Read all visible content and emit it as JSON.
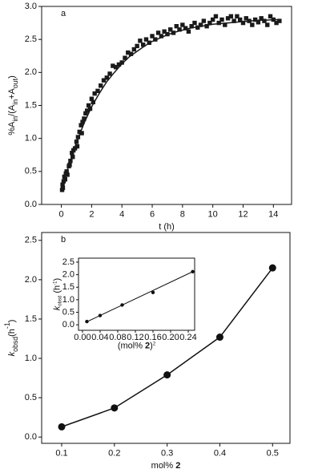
{
  "chart_data": [
    {
      "type": "scatter",
      "label": "a",
      "xlabel": [
        {
          "text": "t (h)"
        }
      ],
      "ylabel": [
        {
          "text": "%A"
        },
        {
          "text": "in",
          "sub": true
        },
        {
          "text": "/(A"
        },
        {
          "text": "in",
          "sub": true
        },
        {
          "text": "+A"
        },
        {
          "text": "out",
          "sub": true
        },
        {
          "text": ")"
        }
      ],
      "xlim": [
        -1.3,
        15.2
      ],
      "ylim": [
        0,
        3
      ],
      "xticks": [
        0,
        2,
        4,
        6,
        8,
        10,
        12,
        14
      ],
      "yticks": [
        {
          "value": 0,
          "label": "0.0"
        },
        0.5,
        {
          "value": 1,
          "label": "1.0"
        },
        1.5,
        {
          "value": 2,
          "label": "2.0"
        },
        2.5,
        {
          "value": 3,
          "label": "3.0"
        }
      ],
      "series": [
        {
          "marker": "square",
          "color": "#1a1a1a",
          "x": [
            0.05,
            0.08,
            0.1,
            0.15,
            0.2,
            0.25,
            0.3,
            0.35,
            0.4,
            0.5,
            0.55,
            0.6,
            0.7,
            0.75,
            0.8,
            0.9,
            1.0,
            1.05,
            1.1,
            1.2,
            1.3,
            1.35,
            1.4,
            1.5,
            1.6,
            1.7,
            1.8,
            1.9,
            2.0,
            2.1,
            2.2,
            2.4,
            2.6,
            2.8,
            3.0,
            3.2,
            3.4,
            3.6,
            3.8,
            4.0,
            4.2,
            4.4,
            4.6,
            4.8,
            5.0,
            5.2,
            5.4,
            5.6,
            5.8,
            6.0,
            6.2,
            6.4,
            6.6,
            6.8,
            7.0,
            7.2,
            7.4,
            7.6,
            7.8,
            8.0,
            8.2,
            8.4,
            8.6,
            8.8,
            9.0,
            9.2,
            9.4,
            9.6,
            9.8,
            10.0,
            10.2,
            10.4,
            10.6,
            10.8,
            11.0,
            11.2,
            11.4,
            11.6,
            11.8,
            12.0,
            12.2,
            12.4,
            12.6,
            12.8,
            13.0,
            13.2,
            13.4,
            13.6,
            13.8,
            14.0,
            14.2,
            14.4
          ],
          "values": [
            0.22,
            0.3,
            0.25,
            0.35,
            0.42,
            0.38,
            0.47,
            0.5,
            0.45,
            0.58,
            0.6,
            0.66,
            0.78,
            0.72,
            0.82,
            0.85,
            0.95,
            0.88,
            1.02,
            1.1,
            1.2,
            1.08,
            1.25,
            1.3,
            1.38,
            1.42,
            1.5,
            1.45,
            1.6,
            1.55,
            1.68,
            1.72,
            1.8,
            1.88,
            1.92,
            1.98,
            2.1,
            2.08,
            2.12,
            2.15,
            2.22,
            2.3,
            2.28,
            2.35,
            2.4,
            2.48,
            2.42,
            2.5,
            2.45,
            2.55,
            2.5,
            2.6,
            2.55,
            2.62,
            2.58,
            2.65,
            2.6,
            2.7,
            2.65,
            2.72,
            2.67,
            2.62,
            2.7,
            2.75,
            2.68,
            2.72,
            2.78,
            2.7,
            2.75,
            2.8,
            2.85,
            2.75,
            2.8,
            2.72,
            2.82,
            2.85,
            2.78,
            2.85,
            2.8,
            2.75,
            2.82,
            2.78,
            2.72,
            2.8,
            2.76,
            2.82,
            2.78,
            2.72,
            2.85,
            2.8,
            2.75,
            2.78
          ]
        },
        {
          "line": true,
          "color": "#1a1a1a",
          "x": [
            0,
            0.5,
            1,
            1.5,
            2,
            2.5,
            3,
            3.5,
            4,
            4.5,
            5,
            5.5,
            6,
            6.5,
            7,
            7.5,
            8,
            8.5,
            9,
            9.5,
            10,
            10.5,
            11,
            11.5,
            12,
            12.5,
            13,
            13.5,
            14,
            14.5
          ],
          "values": [
            0.2,
            0.6,
            0.94,
            1.23,
            1.48,
            1.68,
            1.86,
            2.0,
            2.13,
            2.24,
            2.32,
            2.4,
            2.47,
            2.52,
            2.57,
            2.61,
            2.64,
            2.67,
            2.69,
            2.71,
            2.73,
            2.74,
            2.75,
            2.76,
            2.77,
            2.78,
            2.79,
            2.79,
            2.8,
            2.8
          ]
        }
      ]
    },
    {
      "type": "scatter",
      "label": "b",
      "xlabel": [
        {
          "text": "mol% "
        },
        {
          "text": "2",
          "bold": true
        }
      ],
      "ylabel": [
        {
          "text": "k",
          "italic": true
        },
        {
          "text": "obsd",
          "sub": true
        },
        {
          "text": "(h"
        },
        {
          "text": "-1",
          "sup": true
        },
        {
          "text": ")"
        }
      ],
      "xlim": [
        0.062,
        0.533
      ],
      "ylim": [
        -0.08,
        2.6
      ],
      "xticks": [
        0.1,
        0.2,
        0.3,
        0.4,
        0.5
      ],
      "yticks": [
        {
          "value": 0,
          "label": "0.0"
        },
        0.5,
        {
          "value": 1,
          "label": "1.0"
        },
        1.5,
        {
          "value": 2,
          "label": "2.0"
        },
        2.5
      ],
      "series": [
        {
          "marker": "circle",
          "line": true,
          "color": "#111111",
          "x": [
            0.1,
            0.2,
            0.3,
            0.4,
            0.5
          ],
          "values": [
            0.13,
            0.37,
            0.79,
            1.27,
            2.15
          ]
        }
      ]
    },
    {
      "type": "scatter",
      "inset": true,
      "xlabel": [
        {
          "text": "(mol% "
        },
        {
          "text": "2",
          "bold": true
        },
        {
          "text": ")"
        },
        {
          "text": "2",
          "sup": true
        }
      ],
      "ylabel": [
        {
          "text": "k",
          "italic": true
        },
        {
          "text": "obsd",
          "sub": true
        },
        {
          "text": " (h"
        },
        {
          "text": "-1",
          "sup": true
        },
        {
          "text": ")"
        }
      ],
      "xlim": [
        -0.009,
        0.2545
      ],
      "ylim": [
        -0.22,
        2.66
      ],
      "xticks": [
        {
          "value": 0,
          "label": "0.00"
        },
        0.04,
        0.08,
        0.12,
        0.16,
        {
          "value": 0.2,
          "label": "0.20"
        },
        0.24
      ],
      "yticks": [
        {
          "value": 0,
          "label": "0.0"
        },
        0.5,
        {
          "value": 1,
          "label": "1.0"
        },
        1.5,
        {
          "value": 2,
          "label": "2.0"
        },
        2.5
      ],
      "series": [
        {
          "marker": "circle",
          "color": "#111111",
          "x": [
            0.01,
            0.04,
            0.09,
            0.16,
            0.25
          ],
          "values": [
            0.13,
            0.37,
            0.79,
            1.29,
            2.12
          ]
        },
        {
          "line": true,
          "color": "#111111",
          "x": [
            0.01,
            0.25
          ],
          "values": [
            0.12,
            2.12
          ]
        }
      ]
    }
  ]
}
